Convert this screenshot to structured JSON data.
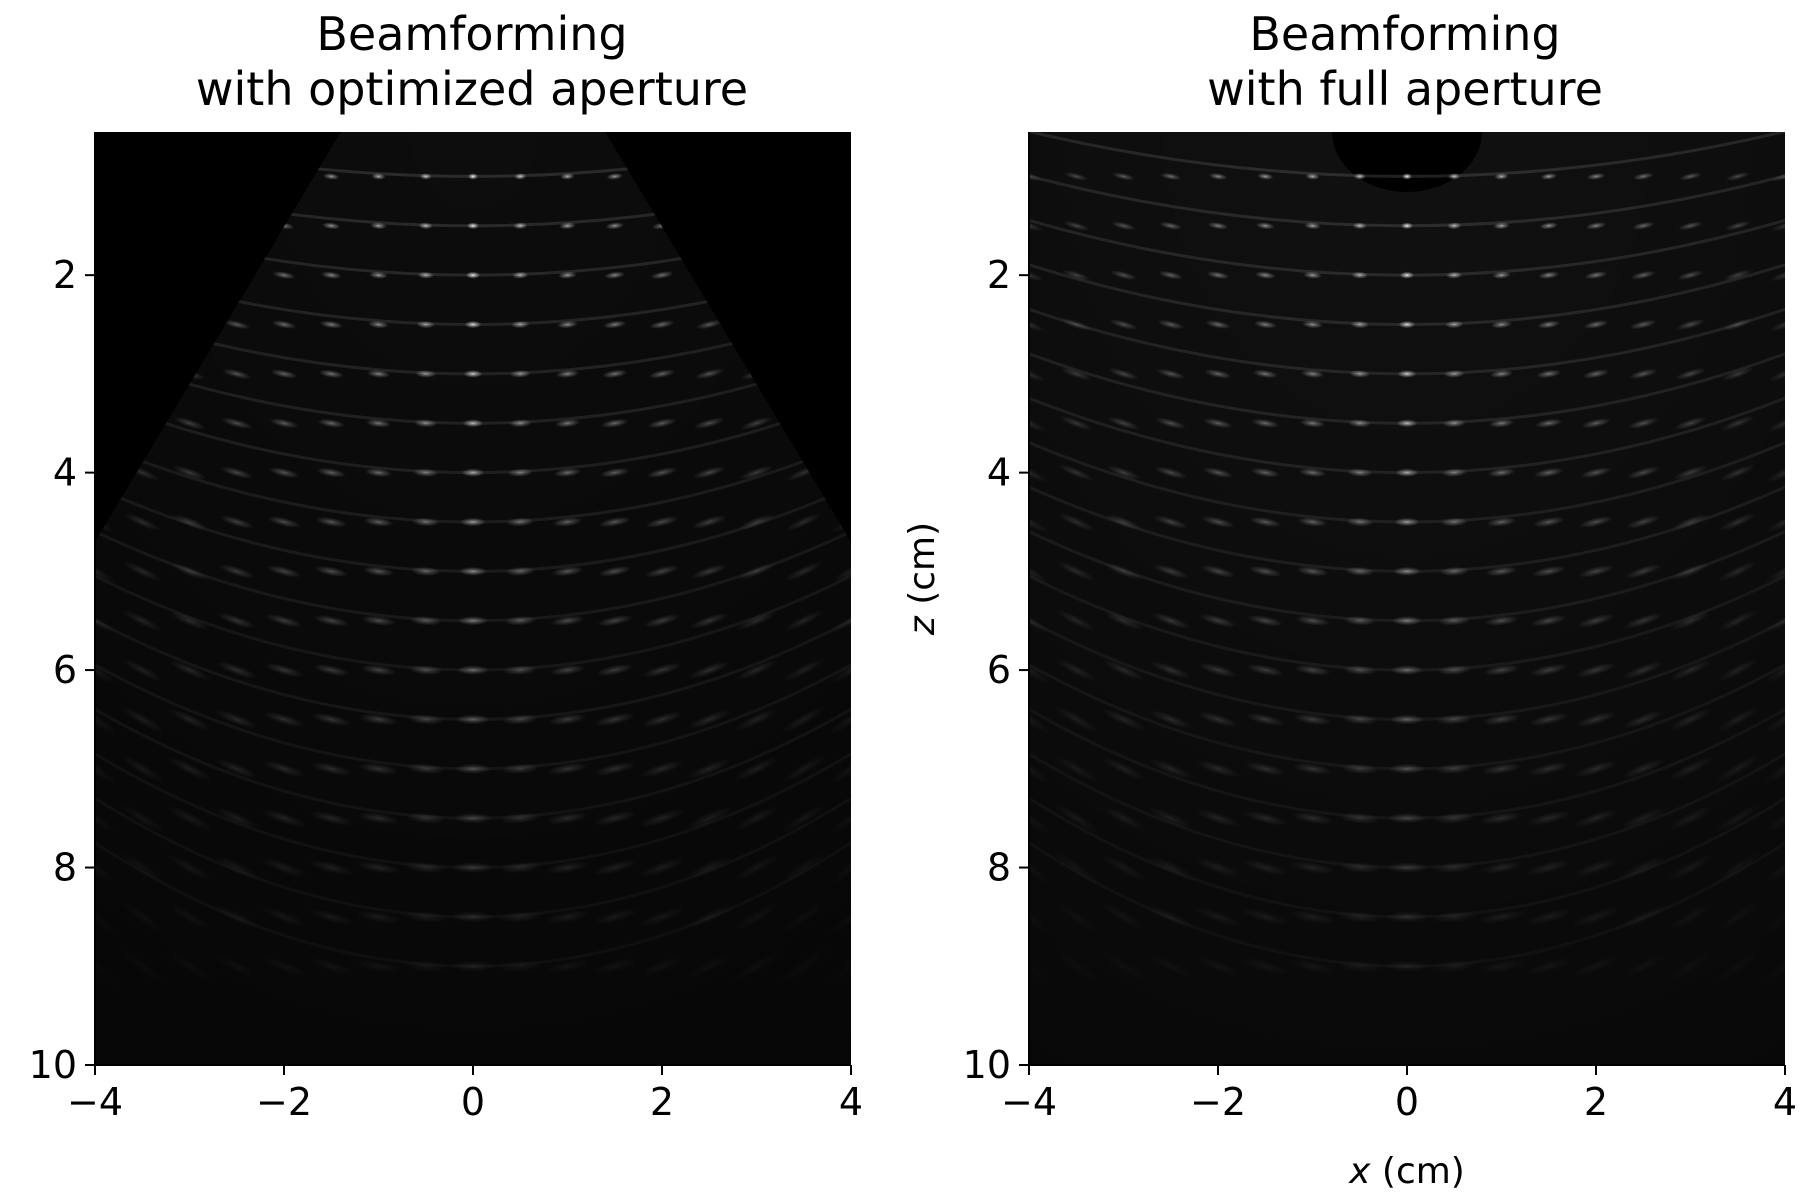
{
  "chart_data": [
    {
      "type": "heatmap",
      "title_lines": [
        "Beamforming",
        "with optimized aperture"
      ],
      "xlabel": "",
      "ylabel": "",
      "xlim": [
        -4,
        4
      ],
      "ylim": [
        10,
        0.55
      ],
      "x_ticks": [
        -4,
        -2,
        0,
        2,
        4
      ],
      "y_ticks": [
        2,
        4,
        6,
        8,
        10
      ],
      "x_tick_labels": [
        "−4",
        "−2",
        "0",
        "2",
        "4"
      ],
      "y_tick_labels": [
        "2",
        "4",
        "6",
        "8",
        "10"
      ],
      "colormap": "gray",
      "aperture": "optimized (sector-shaped field of view)",
      "scatterers": {
        "x_positions_cm": [
          -4,
          -3.5,
          -3,
          -2.5,
          -2,
          -1.5,
          -1,
          -0.5,
          0,
          0.5,
          1,
          1.5,
          2,
          2.5,
          3,
          3.5,
          4
        ],
        "z_start_cm": 1.0,
        "z_step_cm": 0.5,
        "z_count": 17
      }
    },
    {
      "type": "heatmap",
      "title_lines": [
        "Beamforming",
        "with full aperture"
      ],
      "xlabel": "x (cm)",
      "ylabel": "z (cm)",
      "xlim": [
        -4,
        4
      ],
      "ylim": [
        10,
        0.55
      ],
      "x_ticks": [
        -4,
        -2,
        0,
        2,
        4
      ],
      "y_ticks": [
        2,
        4,
        6,
        8,
        10
      ],
      "x_tick_labels": [
        "−4",
        "−2",
        "0",
        "2",
        "4"
      ],
      "y_tick_labels": [
        "2",
        "4",
        "6",
        "8",
        "10"
      ],
      "colormap": "gray",
      "aperture": "full",
      "scatterers": {
        "x_positions_cm": [
          -4,
          -3.5,
          -3,
          -2.5,
          -2,
          -1.5,
          -1,
          -0.5,
          0,
          0.5,
          1,
          1.5,
          2,
          2.5,
          3,
          3.5,
          4
        ],
        "z_start_cm": 1.0,
        "z_step_cm": 0.5,
        "z_count": 17
      }
    }
  ],
  "colors": {
    "background": "#ffffff",
    "image_floor": "#000000",
    "point": "#ffffff",
    "axis": "#000000"
  }
}
